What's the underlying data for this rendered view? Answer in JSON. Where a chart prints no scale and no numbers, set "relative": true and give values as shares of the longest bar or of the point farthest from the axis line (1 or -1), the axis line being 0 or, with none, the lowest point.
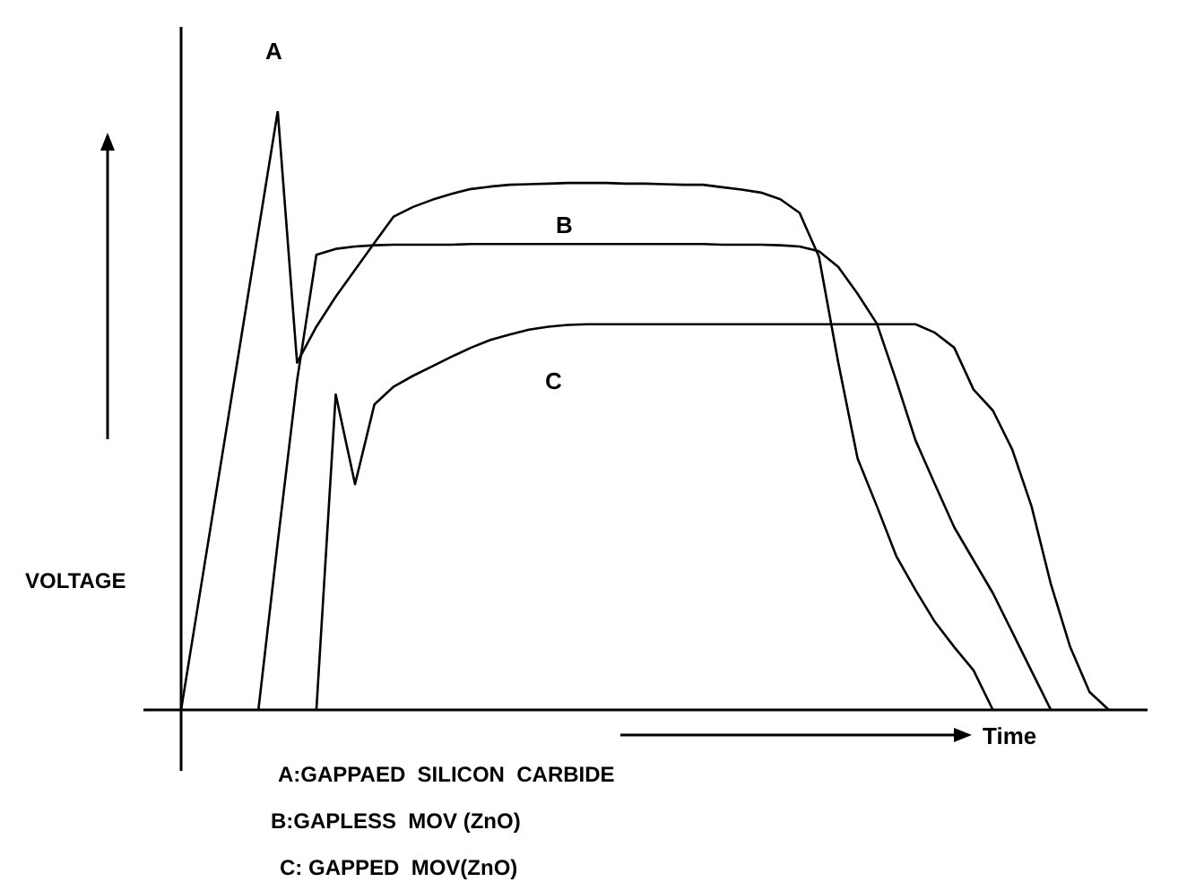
{
  "chart_data": {
    "type": "line",
    "relative": true,
    "xlabel": "Time",
    "ylabel": "VOLTAGE",
    "legend": false,
    "marker": "none",
    "line_style": "solid",
    "annotations": [
      "A:GAPPAED  SILICON  CARBIDE",
      "B:GAPLESS  MOV (ZnO)",
      "C: GAPPED  MOV(ZnO)"
    ],
    "categories": [
      null,
      null,
      null,
      null,
      null,
      null,
      null,
      null,
      null,
      null,
      null,
      null,
      null,
      null,
      null,
      null,
      null,
      null,
      null,
      null,
      null,
      null,
      null,
      null,
      null,
      null,
      null,
      null,
      null,
      null,
      null,
      null,
      null,
      null,
      null,
      null,
      null,
      null,
      null,
      null,
      null,
      null,
      null,
      null,
      null,
      null,
      null,
      null,
      null,
      null,
      null
    ],
    "series": [
      {
        "name": "A",
        "color": "#000000",
        "values": [
          0,
          0.2,
          0.4,
          0.6,
          0.8,
          1,
          0.58,
          0.64,
          0.69,
          0.735,
          0.78,
          0.824,
          0.84,
          0.852,
          0.862,
          0.87,
          0.874,
          0.877,
          0.878,
          0.879,
          0.88,
          0.88,
          0.88,
          0.879,
          0.879,
          0.878,
          0.877,
          0.877,
          0.873,
          0.869,
          0.864,
          0.853,
          0.83,
          0.757,
          0.58,
          0.42,
          0.34,
          0.257,
          0.2,
          0.147,
          0.105,
          0.066,
          0,
          null,
          null,
          null,
          null,
          null,
          null,
          null,
          null
        ]
      },
      {
        "name": "B",
        "color": "#000000",
        "values": [
          null,
          null,
          null,
          null,
          0,
          0.28,
          0.55,
          0.76,
          0.77,
          0.774,
          0.776,
          0.777,
          0.777,
          0.777,
          0.777,
          0.778,
          0.778,
          0.778,
          0.778,
          0.778,
          0.778,
          0.778,
          0.778,
          0.778,
          0.778,
          0.778,
          0.778,
          0.778,
          0.777,
          0.777,
          0.777,
          0.776,
          0.774,
          0.766,
          0.74,
          0.695,
          0.645,
          0.55,
          0.45,
          0.377,
          0.305,
          0.25,
          0.195,
          0.13,
          0.065,
          0,
          null,
          null,
          null,
          null,
          null
        ]
      },
      {
        "name": "C",
        "color": "#000000",
        "values": [
          null,
          null,
          null,
          null,
          null,
          null,
          null,
          0,
          0.527,
          0.377,
          0.51,
          0.54,
          0.558,
          0.574,
          0.59,
          0.605,
          0.618,
          0.627,
          0.635,
          0.64,
          0.643,
          0.644,
          0.644,
          0.644,
          0.644,
          0.644,
          0.644,
          0.644,
          0.644,
          0.644,
          0.644,
          0.644,
          0.644,
          0.644,
          0.644,
          0.644,
          0.644,
          0.644,
          0.644,
          0.63,
          0.605,
          0.535,
          0.5,
          0.435,
          0.34,
          0.21,
          0.105,
          0.03,
          0,
          null,
          null
        ]
      }
    ]
  }
}
